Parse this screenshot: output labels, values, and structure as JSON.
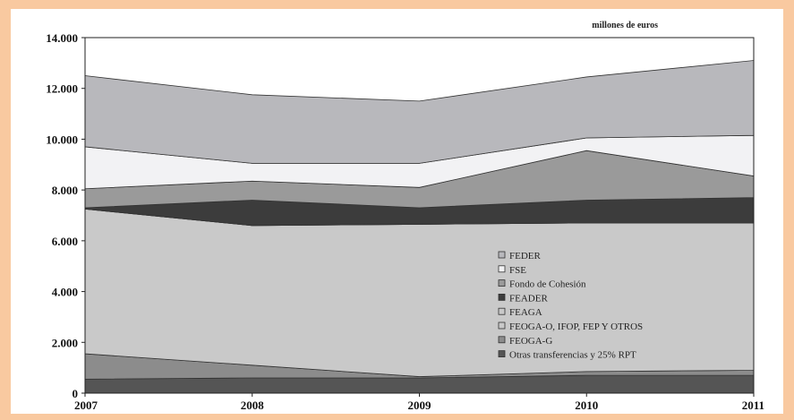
{
  "chart_data": {
    "type": "area",
    "stacked": true,
    "unit_label": "millones de euros",
    "x": [
      "2007",
      "2008",
      "2009",
      "2010",
      "2011"
    ],
    "ylim": [
      0,
      14000
    ],
    "yticks": [
      "0",
      "2.000",
      "4.000",
      "6.000",
      "8.000",
      "10.000",
      "12.000",
      "14.000"
    ],
    "ytick_values": [
      0,
      2000,
      4000,
      6000,
      8000,
      10000,
      12000,
      14000
    ],
    "legend_placement": "inside-bottom-right",
    "series": [
      {
        "name": "Otras transferencias y 25% RPT",
        "color": "#555555",
        "values": [
          550,
          600,
          600,
          700,
          700
        ]
      },
      {
        "name": "FEOGA-G",
        "color": "#8c8c8c",
        "values": [
          1000,
          500,
          50,
          150,
          200
        ]
      },
      {
        "name": "FEOGA-O, IFOP, FEP Y OTROS",
        "color": "#c9c9c9",
        "values": [
          5700,
          5500,
          6000,
          5850,
          5800
        ]
      },
      {
        "name": "FEAGA",
        "color": "#c9c9c9",
        "values": [
          0,
          0,
          0,
          0,
          0
        ]
      },
      {
        "name": "FEADER",
        "color": "#3c3c3c",
        "values": [
          50,
          1000,
          650,
          900,
          1000
        ]
      },
      {
        "name": "Fondo de Cohesión",
        "color": "#9a9a9a",
        "values": [
          750,
          750,
          800,
          1950,
          850
        ]
      },
      {
        "name": "FSE",
        "color": "#f2f2f4",
        "values": [
          1650,
          700,
          950,
          500,
          1600
        ]
      },
      {
        "name": "FEDER",
        "color": "#b8b8bc",
        "values": [
          2800,
          2700,
          2450,
          2400,
          2950
        ]
      }
    ]
  }
}
